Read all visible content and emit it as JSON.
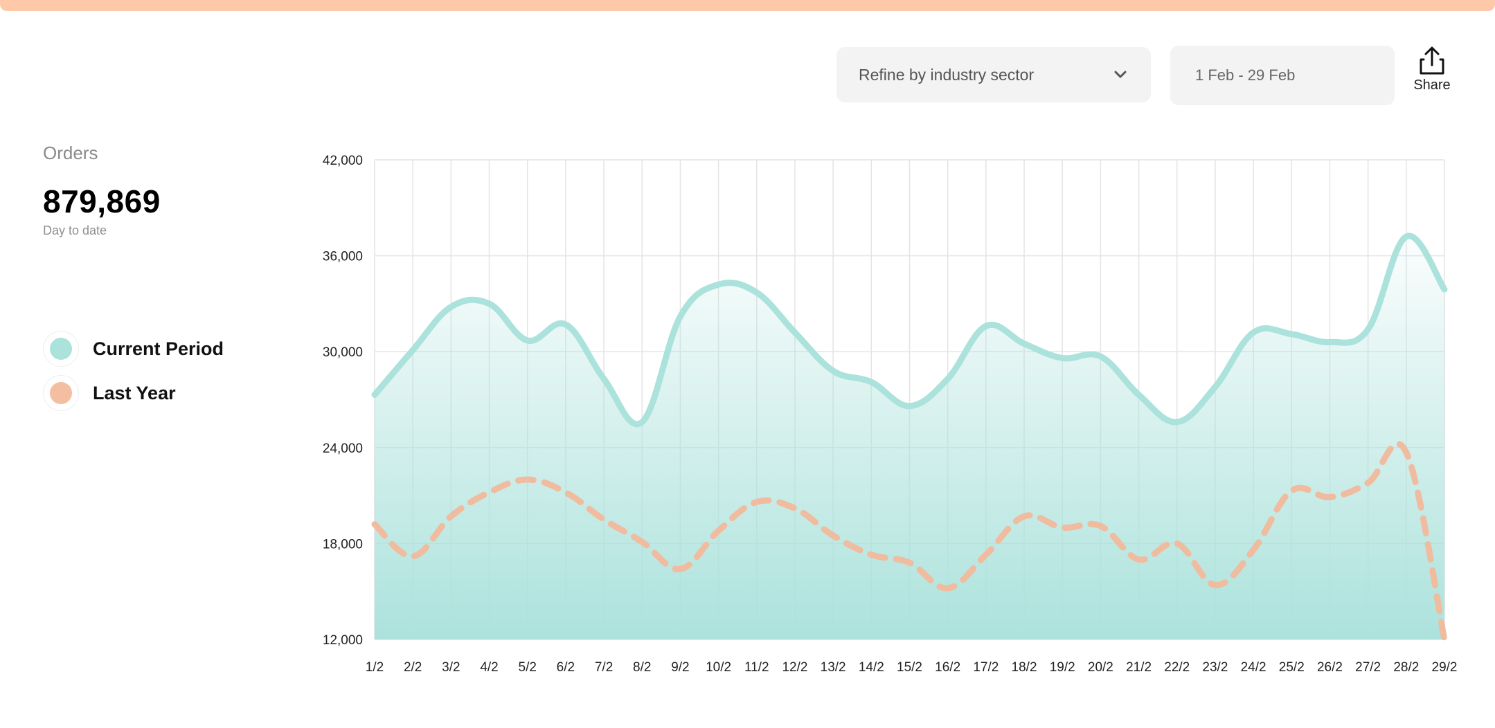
{
  "header": {
    "sector_select": {
      "label": "Refine by industry sector"
    },
    "date_range": {
      "label": "1 Feb - 29 Feb"
    },
    "share": {
      "label": "Share"
    }
  },
  "summary": {
    "title": "Orders",
    "value": "879,869",
    "subtitle": "Day to date"
  },
  "legend": [
    {
      "label": "Current Period",
      "color": "#ace2dc"
    },
    {
      "label": "Last Year",
      "color": "#f4bea0"
    }
  ],
  "colors": {
    "accent_bar": "#fdc9a9",
    "current": "#ace2dc",
    "last_year": "#f0bca0"
  },
  "chart_data": {
    "type": "line",
    "categories": [
      "1/2",
      "2/2",
      "3/2",
      "4/2",
      "5/2",
      "6/2",
      "7/2",
      "8/2",
      "9/2",
      "10/2",
      "11/2",
      "12/2",
      "13/2",
      "14/2",
      "15/2",
      "16/2",
      "17/2",
      "18/2",
      "19/2",
      "20/2",
      "21/2",
      "22/2",
      "23/2",
      "24/2",
      "25/2",
      "26/2",
      "27/2",
      "28/2",
      "29/2"
    ],
    "series": [
      {
        "name": "Current Period",
        "style": "solid-area",
        "values": [
          27300,
          30100,
          32800,
          33000,
          30700,
          31700,
          28300,
          25600,
          32200,
          34200,
          33700,
          31200,
          28800,
          28100,
          26600,
          28300,
          31600,
          30500,
          29600,
          29700,
          27300,
          25600,
          27800,
          31200,
          31100,
          30600,
          31400,
          37200,
          33900
        ]
      },
      {
        "name": "Last Year",
        "style": "dashed",
        "values": [
          19200,
          17200,
          19700,
          21200,
          22000,
          21200,
          19500,
          18100,
          16400,
          18800,
          20600,
          20200,
          18500,
          17300,
          16800,
          15200,
          17300,
          19700,
          19000,
          19100,
          17000,
          18000,
          15400,
          17600,
          21300,
          20900,
          21800,
          23700,
          12000
        ]
      }
    ],
    "y_ticks": [
      "12,000",
      "18,000",
      "24,000",
      "30,000",
      "36,000",
      "42,000"
    ],
    "ylim": [
      12000,
      42000
    ],
    "grid": true
  }
}
